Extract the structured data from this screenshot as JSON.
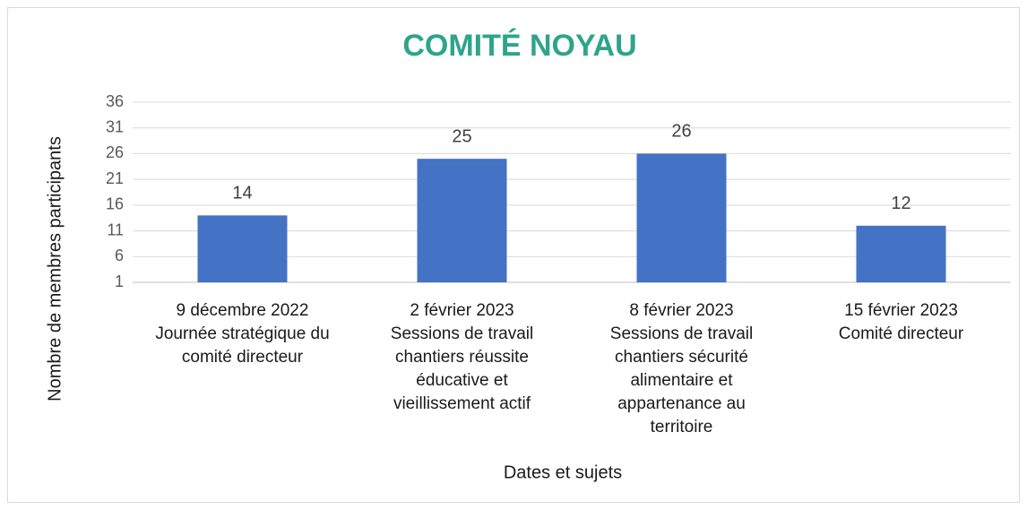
{
  "chart_data": {
    "type": "bar",
    "title": "COMITÉ NOYAU",
    "x_label": "Dates et sujets",
    "y_label": "Nombre de membres participants",
    "categories": [
      [
        "9 décembre 2022",
        "Journée stratégique du",
        "comité directeur"
      ],
      [
        "2 février 2023",
        "Sessions de travail",
        "chantiers réussite",
        "éducative et",
        "vieillissement actif"
      ],
      [
        "8 février 2023",
        "Sessions de travail",
        "chantiers sécurité",
        "alimentaire et",
        "appartenance au",
        "territoire"
      ],
      [
        "15 février 2023",
        "Comité directeur"
      ]
    ],
    "values": [
      14,
      25,
      26,
      12
    ],
    "color": "#4472c4",
    "ylim": [
      1,
      36
    ],
    "yticks": [
      1,
      6,
      11,
      16,
      21,
      26,
      31,
      36
    ],
    "grid": true
  }
}
